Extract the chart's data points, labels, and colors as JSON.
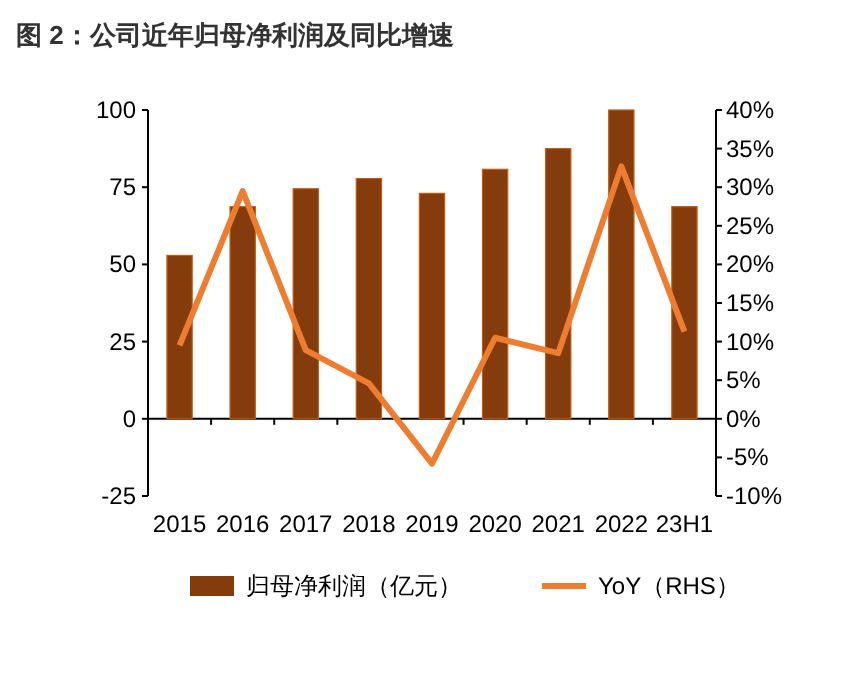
{
  "chart_data": {
    "type": "bar",
    "title": "图 2：公司近年归母净利润及同比增速",
    "categories": [
      "2015",
      "2016",
      "2017",
      "2018",
      "2019",
      "2020",
      "2021",
      "2022",
      "23H1"
    ],
    "series": [
      {
        "name": "归母净利润（亿元）",
        "color": "#843c0c",
        "values": [
          52.9,
          68.7,
          74.5,
          77.8,
          73,
          80.8,
          87.5,
          100,
          68.7
        ]
      },
      {
        "name": "YoY（RHS）",
        "type": "line",
        "axis": "y2",
        "color": "#ed7d31",
        "values": [
          9.5,
          29.5,
          8.9,
          4.6,
          -5.8,
          10.5,
          8.5,
          32.7,
          11.3
        ]
      }
    ],
    "ylim": [
      -25,
      100
    ],
    "yticks": [
      -25,
      0,
      25,
      50,
      75,
      100
    ],
    "y2lim": [
      -10,
      40
    ],
    "y2ticks": [
      {
        "value": -10,
        "label": "-10%"
      },
      {
        "value": -5,
        "label": "-5%"
      },
      {
        "value": 0,
        "label": "0%"
      },
      {
        "value": 5,
        "label": "5%"
      },
      {
        "value": 10,
        "label": "10%"
      },
      {
        "value": 15,
        "label": "15%"
      },
      {
        "value": 20,
        "label": "20%"
      },
      {
        "value": 25,
        "label": "25%"
      },
      {
        "value": 30,
        "label": "30%"
      },
      {
        "value": 35,
        "label": "35%"
      },
      {
        "value": 40,
        "label": "40%"
      }
    ],
    "legend": "bottom",
    "marker": "none"
  }
}
